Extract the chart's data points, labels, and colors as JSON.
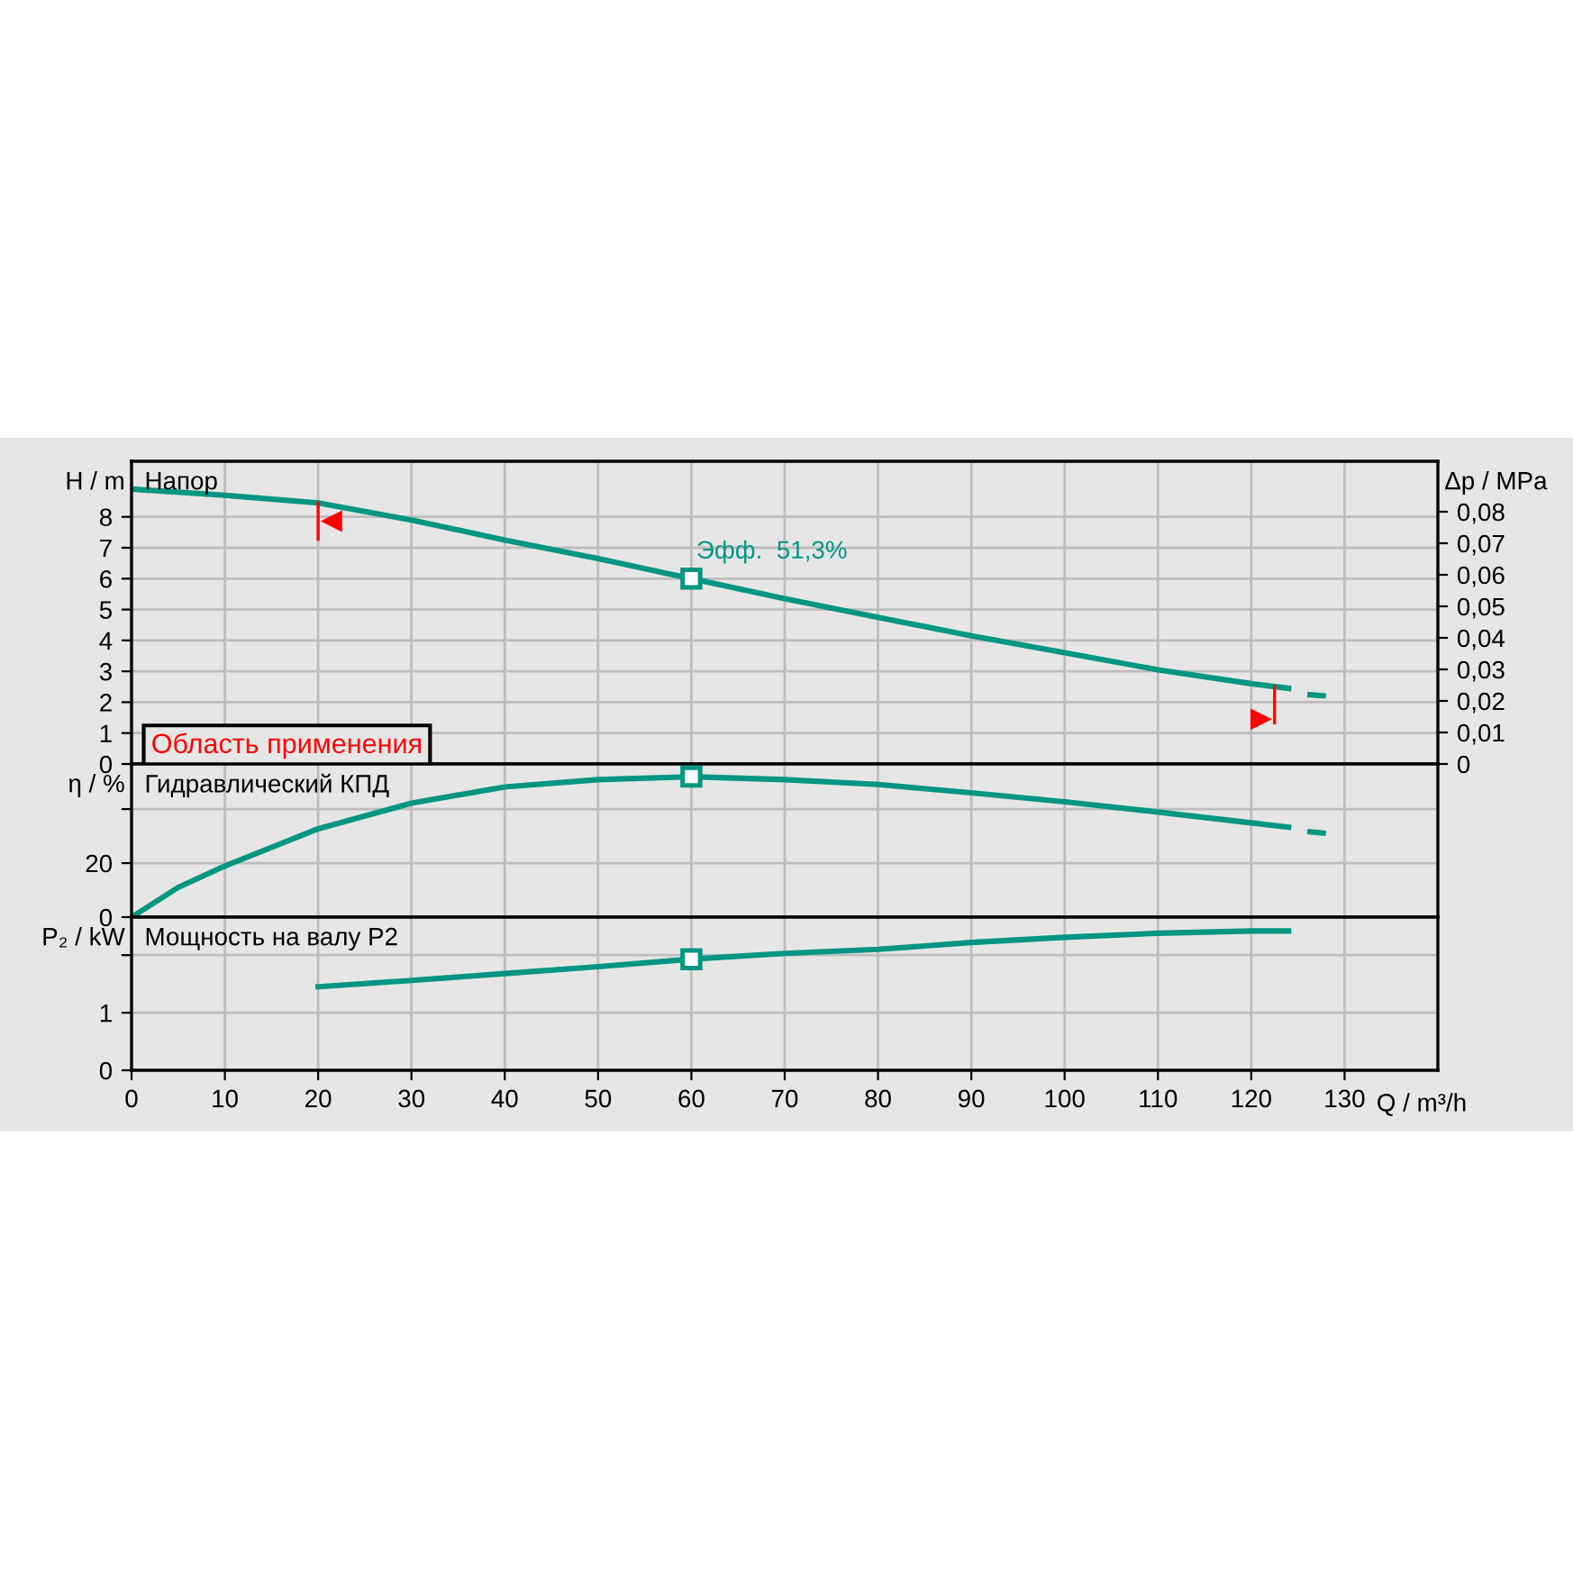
{
  "chart_data": [
    {
      "type": "line",
      "ylabel": "H / m",
      "y2label": "Δp / MPa",
      "annotations": [
        "Напор",
        {
          "text": "Эфф.  51,3%",
          "x": 60,
          "y": 6.0
        }
      ],
      "xlim": [
        0,
        140
      ],
      "xticks": [
        0,
        10,
        20,
        30,
        40,
        50,
        60,
        70,
        80,
        90,
        100,
        110,
        120,
        130
      ],
      "ylim": [
        0,
        9.8
      ],
      "yticks": [
        0,
        1,
        2,
        3,
        4,
        5,
        6,
        7,
        8
      ],
      "y2lim": [
        0,
        0.096
      ],
      "y2ticks": [
        {
          "value": 0,
          "label": "0"
        },
        {
          "value": 0.01,
          "label": "0,01"
        },
        {
          "value": 0.02,
          "label": "0,02"
        },
        {
          "value": 0.03,
          "label": "0,03"
        },
        {
          "value": 0.04,
          "label": "0,04"
        },
        {
          "value": 0.05,
          "label": "0,05"
        },
        {
          "value": 0.06,
          "label": "0,06"
        },
        {
          "value": 0.07,
          "label": "0,07"
        },
        {
          "value": 0.08,
          "label": "0,08"
        }
      ],
      "tick_labels": "y",
      "grid": true,
      "ref_lines": [
        {
          "axis": "x",
          "value": 20,
          "label": "Область применения",
          "color": "#ff0000"
        },
        {
          "axis": "x",
          "value": 122.5,
          "color": "#ff0000"
        }
      ],
      "series": [
        {
          "color": "#009682",
          "x": [
            0,
            10,
            20,
            30,
            40,
            50,
            60,
            70,
            80,
            90,
            100,
            110,
            120,
            124
          ],
          "values": [
            8.9,
            8.7,
            8.45,
            7.9,
            7.25,
            6.65,
            6.0,
            5.35,
            4.75,
            4.15,
            3.6,
            3.05,
            2.6,
            2.45
          ]
        },
        {
          "color": "#009682",
          "line_style": "dashed",
          "x": [
            126,
            128
          ],
          "values": [
            2.25,
            2.2
          ]
        },
        {
          "type": "scatter",
          "color": "#009682",
          "marker": "square",
          "x": [
            60
          ],
          "values": [
            6.0
          ]
        }
      ]
    },
    {
      "type": "line",
      "ylabel": "η / %",
      "annotations": [
        "Гидравлический КПД"
      ],
      "xlim": [
        0,
        140
      ],
      "xticks": [
        0,
        10,
        20,
        30,
        40,
        50,
        60,
        70,
        80,
        90,
        100,
        110,
        120,
        130
      ],
      "ylim": [
        0,
        56.7
      ],
      "yticks": [
        0,
        20,
        {
          "value": 40,
          "label": null
        }
      ],
      "tick_labels": "y",
      "grid": true,
      "series": [
        {
          "color": "#009682",
          "x": [
            0,
            5,
            10,
            20,
            30,
            40,
            50,
            60,
            70,
            80,
            90,
            100,
            110,
            120,
            124
          ],
          "values": [
            0,
            11,
            18.9,
            32.7,
            42.2,
            48.2,
            50.9,
            52,
            50.9,
            49.1,
            46,
            42.7,
            38.9,
            34.9,
            33.3
          ]
        },
        {
          "color": "#009682",
          "line_style": "dashed",
          "x": [
            126,
            128
          ],
          "values": [
            31.7,
            31
          ]
        },
        {
          "type": "scatter",
          "color": "#009682",
          "marker": "square",
          "x": [
            60
          ],
          "values": [
            52
          ]
        }
      ]
    },
    {
      "type": "line",
      "ylabel": "P₂ / kW",
      "xlabel": "Q / m³/h",
      "annotations": [
        "Мощность на валу P2"
      ],
      "xlim": [
        0,
        140
      ],
      "xticks": [
        0,
        10,
        20,
        30,
        40,
        50,
        60,
        70,
        80,
        90,
        100,
        110,
        120,
        130
      ],
      "ylim": [
        0,
        2.66
      ],
      "yticks": [
        0,
        1,
        {
          "value": 2,
          "label": null
        }
      ],
      "grid": true,
      "series": [
        {
          "color": "#009682",
          "x": [
            20,
            30,
            40,
            50,
            60,
            70,
            80,
            90,
            100,
            110,
            120,
            124
          ],
          "values": [
            1.45,
            1.56,
            1.68,
            1.8,
            1.93,
            2.03,
            2.1,
            2.22,
            2.31,
            2.38,
            2.42,
            2.42
          ]
        },
        {
          "type": "scatter",
          "color": "#009682",
          "marker": "square",
          "x": [
            60
          ],
          "values": [
            1.93
          ]
        }
      ]
    }
  ]
}
